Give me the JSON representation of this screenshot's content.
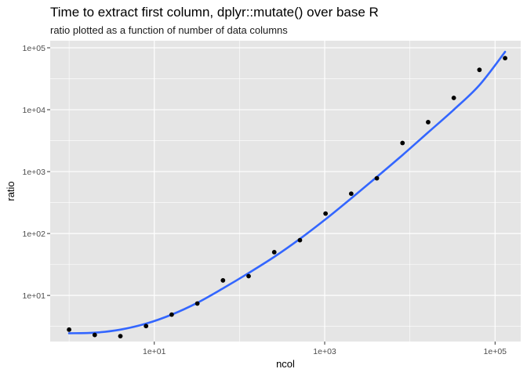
{
  "chart_data": {
    "type": "scatter",
    "title": "Time to extract first column, dplyr::mutate() over base R",
    "subtitle": "ratio plotted as a function of number of data columns",
    "xlabel": "ncol",
    "ylabel": "ratio",
    "x_scale": "log10",
    "y_scale": "log10",
    "xlim": [
      0.6,
      200000
    ],
    "ylim": [
      1.8,
      130000
    ],
    "x_ticks": [
      10,
      1000,
      100000
    ],
    "x_tick_labels": [
      "1e+01",
      "1e+03",
      "1e+05"
    ],
    "y_ticks": [
      10,
      100,
      1000,
      10000,
      100000
    ],
    "y_tick_labels": [
      "1e+01",
      "1e+02",
      "1e+03",
      "1e+04",
      "1e+05"
    ],
    "grid": true,
    "background": "#e5e5e5",
    "grid_color": "#ffffff",
    "point_color": "#000000",
    "smooth_color": "#3366ff",
    "points": {
      "x": [
        1,
        2,
        4,
        8,
        16,
        32,
        64,
        128,
        256,
        512,
        1024,
        2048,
        4096,
        8192,
        16384,
        32768,
        65536,
        131072
      ],
      "y": [
        2.8,
        2.3,
        2.2,
        3.2,
        4.9,
        7.4,
        17.5,
        20.5,
        50,
        78,
        210,
        440,
        780,
        2900,
        6300,
        15500,
        44000,
        68000
      ]
    },
    "smooth": {
      "x": [
        1,
        2,
        4,
        8,
        16,
        32,
        64,
        128,
        256,
        512,
        1024,
        2048,
        4096,
        8192,
        16384,
        32768,
        65536,
        131072
      ],
      "y": [
        2.45,
        2.5,
        2.8,
        3.5,
        4.9,
        7.6,
        13,
        23,
        42,
        82,
        170,
        370,
        820,
        1850,
        4300,
        10000,
        25000,
        86000
      ]
    }
  }
}
